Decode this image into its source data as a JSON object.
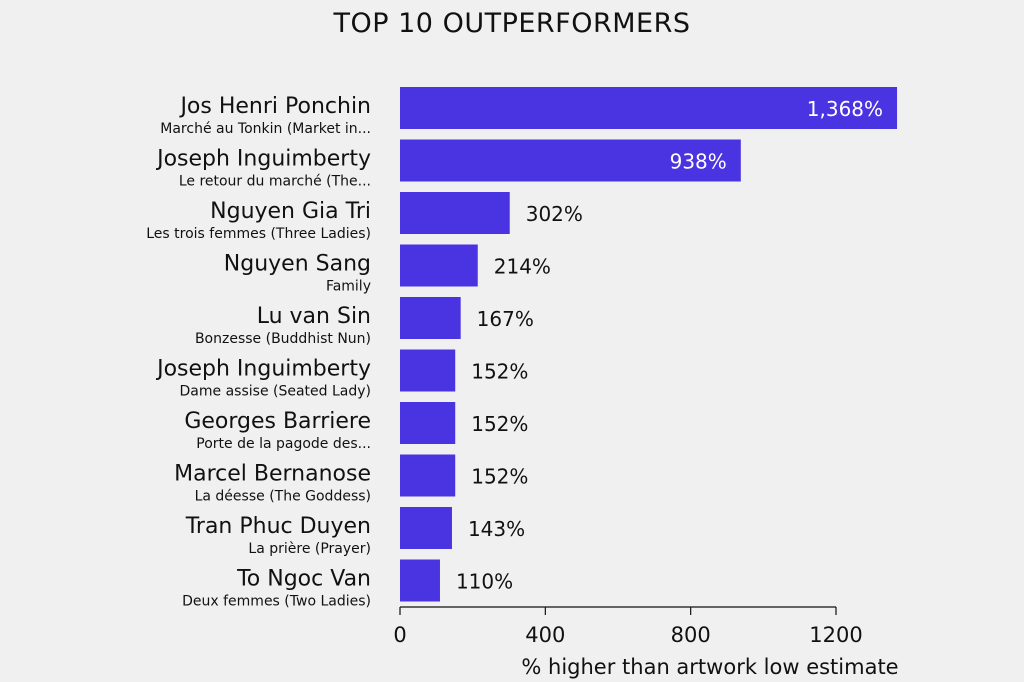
{
  "chart_data": {
    "type": "bar",
    "orientation": "horizontal",
    "title": "TOP 10 OUTPERFORMERS",
    "xlabel": "% higher than artwork low estimate",
    "xlim": [
      0,
      1200
    ],
    "xticks": [
      0,
      400,
      800,
      1200
    ],
    "bar_color": "#4a33e0",
    "grid": false,
    "categories": [
      {
        "artist": "Jos Henri Ponchin",
        "artwork": "Marché au Tonkin (Market in...",
        "value": 1368,
        "label": "1,368%"
      },
      {
        "artist": "Joseph Inguimberty",
        "artwork": "Le retour du marché (The...",
        "value": 938,
        "label": "938%"
      },
      {
        "artist": "Nguyen Gia Tri",
        "artwork": "Les trois femmes (Three Ladies)",
        "value": 302,
        "label": "302%"
      },
      {
        "artist": "Nguyen Sang",
        "artwork": "Family",
        "value": 214,
        "label": "214%"
      },
      {
        "artist": "Lu van Sin",
        "artwork": "Bonzesse (Buddhist Nun)",
        "value": 167,
        "label": "167%"
      },
      {
        "artist": "Joseph Inguimberty",
        "artwork": "Dame assise (Seated Lady)",
        "value": 152,
        "label": "152%"
      },
      {
        "artist": "Georges Barriere",
        "artwork": "Porte de la pagode des...",
        "value": 152,
        "label": "152%"
      },
      {
        "artist": "Marcel Bernanose",
        "artwork": "La déesse (The Goddess)",
        "value": 152,
        "label": "152%"
      },
      {
        "artist": "Tran Phuc Duyen",
        "artwork": "La prière (Prayer)",
        "value": 143,
        "label": "143%"
      },
      {
        "artist": "To Ngoc Van",
        "artwork": "Deux femmes (Two Ladies)",
        "value": 110,
        "label": "110%"
      }
    ]
  }
}
